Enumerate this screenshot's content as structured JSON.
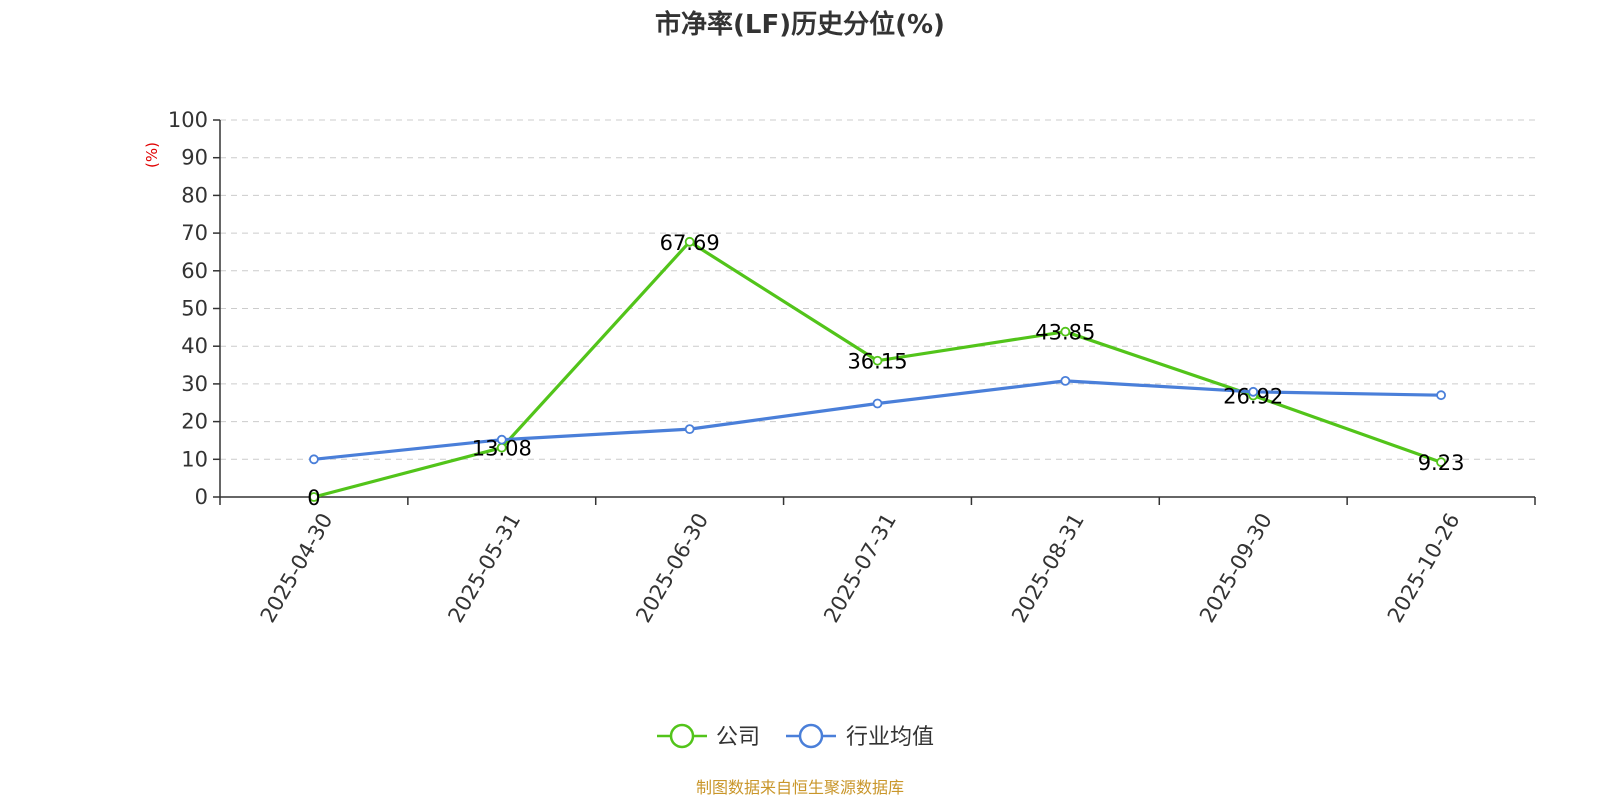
{
  "chart_data": {
    "type": "line",
    "title": "市净率(LF)历史分位(%)",
    "ylabel": "(%)",
    "xlabel": "",
    "categories": [
      "2025-04-30",
      "2025-05-31",
      "2025-06-30",
      "2025-07-31",
      "2025-08-31",
      "2025-09-30",
      "2025-10-26"
    ],
    "ylim": [
      0,
      100
    ],
    "yticks": [
      0,
      10,
      20,
      30,
      40,
      50,
      60,
      70,
      80,
      90,
      100
    ],
    "grid": true,
    "legend_position": "bottom-center",
    "series": [
      {
        "name": "公司",
        "color": "#52c41a",
        "values": [
          0,
          13.08,
          67.69,
          36.15,
          43.85,
          26.92,
          9.23
        ],
        "data_labels": [
          "0",
          "13.08",
          "67.69",
          "36.15",
          "43.85",
          "26.92",
          "9.23"
        ]
      },
      {
        "name": "行业均值",
        "color": "#4a7fd9",
        "values": [
          10,
          15.2,
          18,
          24.8,
          30.8,
          27.9,
          27
        ]
      }
    ]
  },
  "source_note": "制图数据来自恒生聚源数据库",
  "colors": {
    "ylabel": "#e00000",
    "source": "#c9962a",
    "grid": "#cccccc",
    "axis": "#333333"
  }
}
